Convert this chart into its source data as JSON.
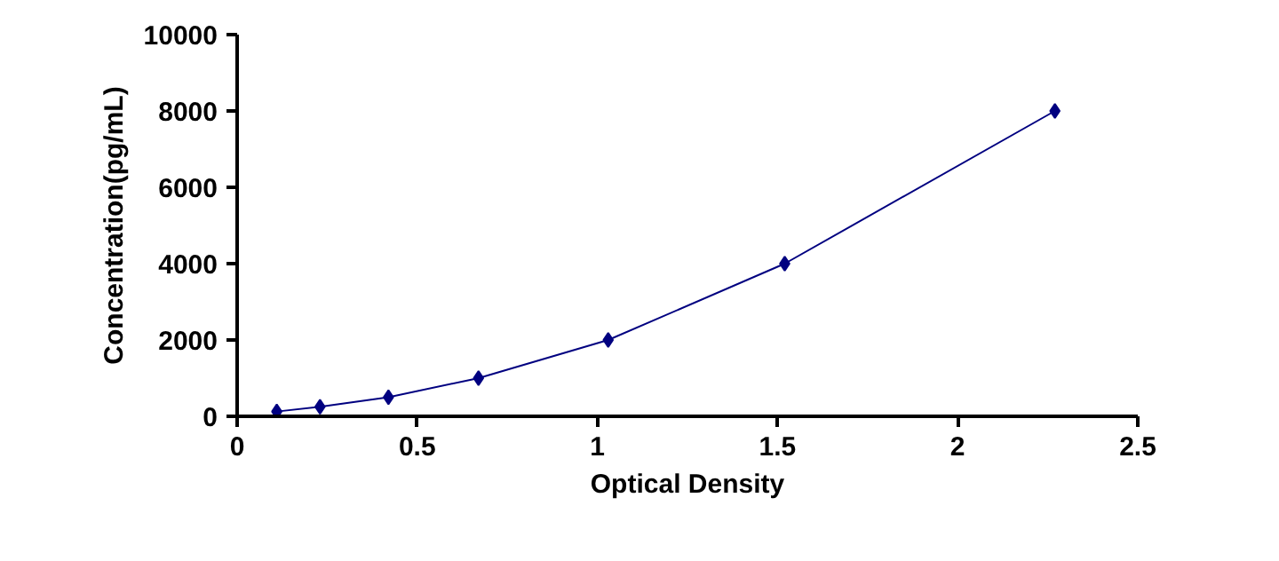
{
  "chart_data": {
    "type": "line",
    "xlabel": "Optical Density",
    "ylabel": "Concentration(pg/mL)",
    "x": [
      0.11,
      0.23,
      0.42,
      0.67,
      1.03,
      1.52,
      2.27
    ],
    "series": [
      {
        "color": "#000080",
        "values": [
          125,
          250,
          500,
          1000,
          2000,
          4000,
          8000
        ]
      }
    ],
    "marker": "diamond",
    "line_style": "solid",
    "grid": false,
    "xlim": [
      0,
      2.5
    ],
    "xticks": [
      0,
      0.5,
      1,
      1.5,
      2,
      2.5
    ],
    "ylim": [
      0,
      10000
    ],
    "yticks": [
      0,
      2000,
      4000,
      6000,
      8000,
      10000
    ]
  }
}
